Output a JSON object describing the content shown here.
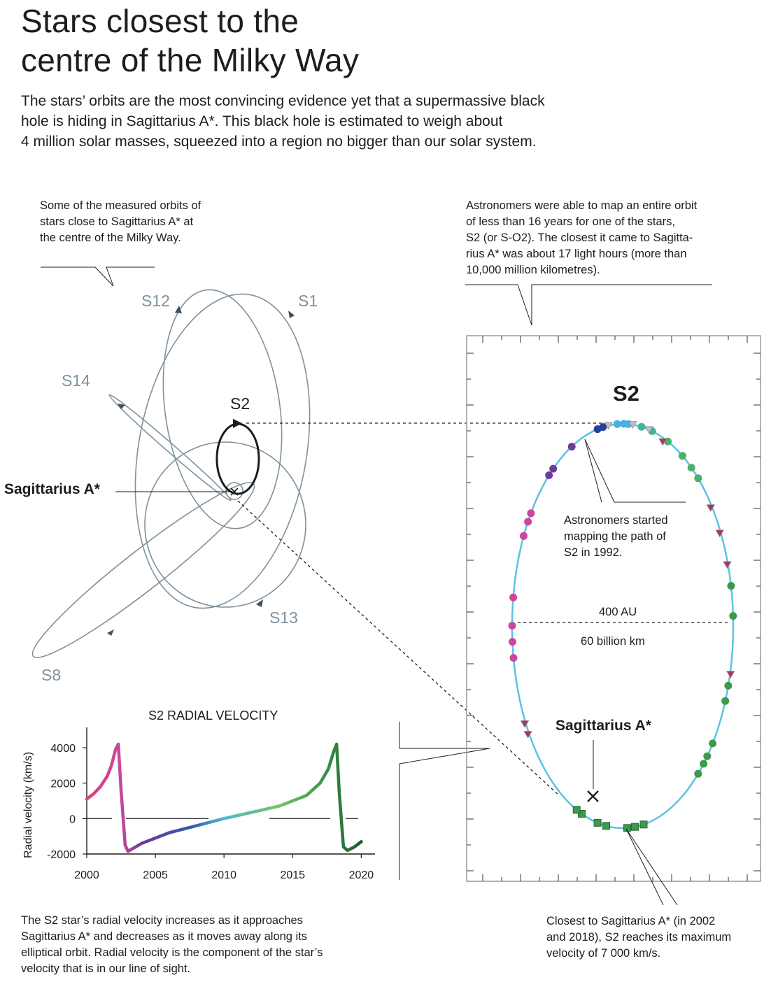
{
  "title": {
    "line1": "Stars closest to the",
    "line2": "centre of the Milky Way"
  },
  "intro": {
    "line1": "The stars’ orbits are the most convincing evidence yet that a supermassive black",
    "line2": "hole is hiding in Sagittarius A*. This black hole is estimated to weigh about",
    "line3": "4 million solar masses, squeezed into a region no bigger than our solar system."
  },
  "notes": {
    "left": [
      "Some of the measured orbits of",
      "stars close to Sagittarius A* at",
      "the centre of the Milky Way."
    ],
    "right": [
      "Astronomers were able to map an entire orbit",
      "of less than 16 years for one of the stars,",
      "S2 (or S-O2). The closest it came to Sagitta-",
      "rius A* was about 17 light hours (more than",
      "10,000 million kilometres)."
    ],
    "started": [
      "Astronomers started",
      "mapping the path of",
      "S2 in 1992."
    ],
    "bottom_left": [
      "The S2 star’s radial velocity increases as it approaches",
      "Sagittarius A* and decreases as it moves away along its",
      "elliptical orbit. Radial velocity is the component of the star’s",
      "velocity that is in our line of sight."
    ],
    "bottom_right": [
      "Closest to Sagittarius A* (in 2002",
      "and 2018), S2 reaches its maximum",
      "velocity of 7 000 km/s."
    ]
  },
  "orbits": {
    "labels": {
      "s12": "S12",
      "s1": "S1",
      "s14": "S14",
      "s2": "S2",
      "s13": "S13",
      "s8": "S8"
    },
    "center_label": "Sagittarius A*",
    "colors": {
      "orbit": "#7f919c",
      "s2": "#1d1d1b"
    }
  },
  "s2_panel": {
    "title": "S2",
    "center_label": "Sagittarius A*",
    "scale_au": "400 AU",
    "scale_km": "60 billion km",
    "colors": {
      "orbit": "#5bc3e0",
      "frame": "#9a9a9a"
    }
  },
  "chart_data": {
    "type": "line",
    "title": "S2 RADIAL VELOCITY",
    "xlabel": "",
    "ylabel": "Radial velocity (km/s)",
    "xlim": [
      2000,
      2021
    ],
    "ylim": [
      -2000,
      5000
    ],
    "xticks": [
      "2000",
      "2005",
      "2010",
      "2015",
      "2020"
    ],
    "yticks": [
      "-2000",
      "0",
      "2000",
      "4000"
    ],
    "series": [
      {
        "x": [
          2000,
          2000.5,
          2001,
          2001.5,
          2001.8,
          2002.1,
          2002.3,
          2002.5,
          2002.8,
          2003,
          2004,
          2006,
          2008,
          2010,
          2012,
          2014,
          2016,
          2017,
          2017.6,
          2018.0,
          2018.2,
          2018.4,
          2018.7,
          2019,
          2019.5,
          2020
        ],
        "y": [
          1100,
          1400,
          1800,
          2400,
          3000,
          3900,
          4200,
          1600,
          -1500,
          -1850,
          -1400,
          -800,
          -400,
          0,
          350,
          700,
          1300,
          2000,
          2800,
          3800,
          4200,
          1400,
          -1600,
          -1800,
          -1600,
          -1300
        ]
      }
    ]
  }
}
